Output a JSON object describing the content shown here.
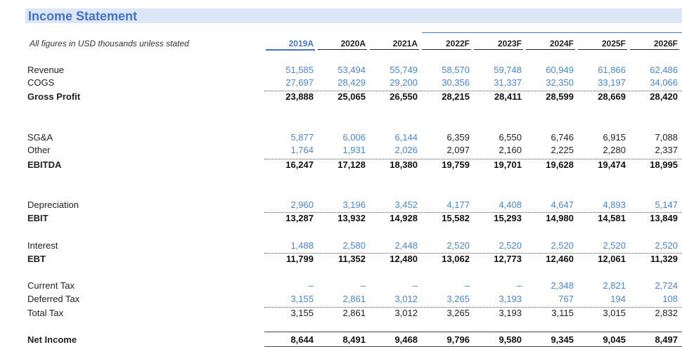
{
  "title": "Income Statement",
  "subtitle": "All figures in USD thousands unless stated",
  "years": [
    "2019A",
    "2020A",
    "2021A",
    "2022F",
    "2023F",
    "2024F",
    "2025F",
    "2026F"
  ],
  "colors": {
    "accent": "#4472c4",
    "input_blue": "#4a86d6",
    "title_band": "#dce6f7"
  },
  "rows": [
    {
      "label": "Revenue",
      "bold": false,
      "values": [
        "51,585",
        "53,494",
        "55,749",
        "58,570",
        "59,748",
        "60,949",
        "61,866",
        "62,486"
      ]
    },
    {
      "label": "COGS",
      "bold": false,
      "values": [
        "27,697",
        "28,429",
        "29,200",
        "30,356",
        "31,337",
        "32,350",
        "33,197",
        "34,066"
      ]
    },
    {
      "label": "Gross Profit",
      "bold": true,
      "values": [
        "23,888",
        "25,065",
        "26,550",
        "28,215",
        "28,411",
        "28,599",
        "28,669",
        "28,420"
      ]
    },
    {
      "label": "SG&A",
      "bold": false,
      "values": [
        "5,877",
        "6,006",
        "6,144",
        "6,359",
        "6,550",
        "6,746",
        "6,915",
        "7,088"
      ]
    },
    {
      "label": "Other",
      "bold": false,
      "values": [
        "1,764",
        "1,931",
        "2,026",
        "2,097",
        "2,160",
        "2,225",
        "2,280",
        "2,337"
      ]
    },
    {
      "label": "EBITDA",
      "bold": true,
      "values": [
        "16,247",
        "17,128",
        "18,380",
        "19,759",
        "19,701",
        "19,628",
        "19,474",
        "18,995"
      ]
    },
    {
      "label": "Depreciation",
      "bold": false,
      "values": [
        "2,960",
        "3,196",
        "3,452",
        "4,177",
        "4,408",
        "4,647",
        "4,893",
        "5,147"
      ]
    },
    {
      "label": "EBIT",
      "bold": true,
      "values": [
        "13,287",
        "13,932",
        "14,928",
        "15,582",
        "15,293",
        "14,980",
        "14,581",
        "13,849"
      ]
    },
    {
      "label": "Interest",
      "bold": false,
      "values": [
        "1,488",
        "2,580",
        "2,448",
        "2,520",
        "2,520",
        "2,520",
        "2,520",
        "2,520"
      ]
    },
    {
      "label": "EBT",
      "bold": true,
      "values": [
        "11,799",
        "11,352",
        "12,480",
        "13,062",
        "12,773",
        "12,460",
        "12,061",
        "11,329"
      ]
    },
    {
      "label": "Current Tax",
      "bold": false,
      "values": [
        "–",
        "–",
        "–",
        "–",
        "–",
        "2,348",
        "2,821",
        "2,724"
      ]
    },
    {
      "label": "Deferred Tax",
      "bold": false,
      "values": [
        "3,155",
        "2,861",
        "3,012",
        "3,265",
        "3,193",
        "767",
        "194",
        "108"
      ]
    },
    {
      "label": "Total Tax",
      "bold": false,
      "values": [
        "3,155",
        "2,861",
        "3,012",
        "3,265",
        "3,193",
        "3,115",
        "3,015",
        "2,832"
      ]
    },
    {
      "label": "Net Income",
      "bold": true,
      "values": [
        "8,644",
        "8,491",
        "9,468",
        "9,796",
        "9,580",
        "9,345",
        "9,045",
        "8,497"
      ]
    }
  ]
}
